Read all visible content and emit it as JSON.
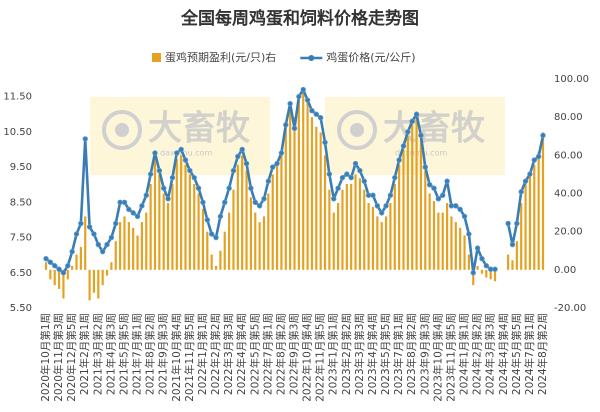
{
  "chart_data": {
    "type": "combo",
    "title": "全国每周鸡蛋和饲料价格走势图",
    "watermark_text": "大畜牧",
    "watermark_url": "daxumu.com",
    "categories": [
      "2020年10月第1周",
      null,
      null,
      "2020年11月第3周",
      null,
      null,
      "2020年12月第5周",
      null,
      null,
      "2021年2月第1周",
      null,
      null,
      "2021年3月第2周",
      null,
      null,
      "2021年4月第3周",
      null,
      null,
      "2021年5月第5周",
      null,
      null,
      "2021年7月第1周",
      null,
      null,
      "2021年8月第2周",
      null,
      null,
      "2021年9月第3周",
      null,
      null,
      "2021年10月第4周",
      null,
      null,
      "2021年11月第5周",
      null,
      null,
      "2022年1月第1周",
      null,
      null,
      "2022年2月第2周",
      null,
      null,
      "2022年3月第3周",
      null,
      null,
      "2022年4月第4周",
      null,
      null,
      "2022年5月第5周",
      null,
      null,
      "2022年7月第1周",
      null,
      null,
      "2022年8月第2周",
      null,
      null,
      "2022年9月第3周",
      null,
      null,
      "2022年10月第4周",
      null,
      null,
      "2022年11月第5周",
      null,
      null,
      "2023年1月第1周",
      null,
      null,
      "2023年2月第2周",
      null,
      null,
      "2023年3月第3周",
      null,
      null,
      "2023年4月第4周",
      null,
      null,
      "2023年5月第5周",
      null,
      null,
      "2023年7月第1周",
      null,
      null,
      "2023年8月第2周",
      null,
      null,
      "2023年9月第3周",
      null,
      null,
      "2023年10月第4周",
      null,
      null,
      "2023年11月第5周",
      null,
      null,
      "2024年1月第1周",
      null,
      null,
      "2024年2月第2周",
      null,
      null,
      "2024年3月第3周",
      null,
      null,
      "2024年4月第4周",
      null,
      null,
      "2024年5月第5周",
      null,
      null,
      "2024年7月第1周",
      null,
      null,
      "2024年8月第2周"
    ],
    "series": [
      {
        "name": "蛋鸡预期盈利(元/只)右",
        "type": "bar",
        "axis": "y2",
        "color": "#e5a11f",
        "values": [
          4,
          -5,
          -8,
          -10,
          -15,
          -5,
          2,
          8,
          12,
          28,
          -16,
          -12,
          -15,
          -8,
          -3,
          4,
          15,
          25,
          28,
          25,
          22,
          18,
          25,
          30,
          45,
          60,
          50,
          40,
          35,
          45,
          58,
          60,
          55,
          50,
          45,
          40,
          32,
          20,
          8,
          2,
          10,
          20,
          30,
          42,
          55,
          60,
          52,
          38,
          30,
          25,
          28,
          40,
          50,
          55,
          62,
          75,
          85,
          80,
          90,
          95,
          90,
          80,
          75,
          72,
          60,
          42,
          30,
          35,
          42,
          45,
          45,
          50,
          48,
          42,
          35,
          33,
          28,
          25,
          28,
          35,
          45,
          55,
          63,
          70,
          78,
          82,
          70,
          52,
          40,
          36,
          30,
          30,
          35,
          28,
          25,
          22,
          18,
          8,
          -8,
          2,
          -2,
          -4,
          -5,
          -6,
          null,
          null,
          8,
          5,
          15,
          35,
          45,
          50,
          55,
          62,
          72
        ]
      },
      {
        "name": "鸡蛋价格(元/公斤)",
        "type": "line",
        "color": "#3a7db5",
        "values": [
          6.9,
          6.8,
          6.7,
          6.6,
          6.5,
          6.7,
          7.1,
          7.6,
          7.9,
          10.3,
          7.8,
          7.6,
          7.3,
          7.1,
          7.3,
          7.5,
          7.9,
          8.5,
          8.5,
          8.3,
          8.2,
          8.1,
          8.4,
          8.7,
          9.3,
          9.9,
          9.4,
          8.9,
          8.6,
          9.2,
          9.9,
          10.0,
          9.7,
          9.4,
          9.2,
          8.9,
          8.5,
          8.0,
          7.6,
          7.5,
          8.1,
          8.5,
          8.9,
          9.4,
          9.8,
          10.0,
          9.6,
          8.9,
          8.5,
          8.4,
          8.6,
          9.1,
          9.5,
          9.6,
          9.9,
          10.7,
          11.3,
          10.6,
          11.5,
          11.7,
          11.4,
          11.1,
          11.0,
          10.9,
          10.2,
          9.3,
          8.6,
          8.9,
          9.2,
          9.3,
          9.2,
          9.6,
          9.4,
          9.1,
          8.7,
          8.7,
          8.4,
          8.2,
          8.4,
          8.7,
          9.2,
          9.7,
          10.1,
          10.5,
          10.8,
          11.0,
          10.4,
          9.5,
          9.0,
          8.9,
          8.6,
          8.7,
          9.1,
          8.4,
          8.4,
          8.3,
          8.1,
          7.6,
          6.5,
          7.2,
          6.9,
          6.7,
          6.6,
          6.6,
          null,
          null,
          7.9,
          7.3,
          7.9,
          8.8,
          9.1,
          9.3,
          9.7,
          9.8,
          10.4
        ]
      }
    ],
    "ylim": [
      5.5,
      12.0
    ],
    "yticks": [
      {
        "value": 5.5,
        "label": "5.50"
      },
      {
        "value": 6.5,
        "label": "6.50"
      },
      {
        "value": 7.5,
        "label": "7.50"
      },
      {
        "value": 8.5,
        "label": "8.50"
      },
      {
        "value": 9.5,
        "label": "9.50"
      },
      {
        "value": 10.5,
        "label": "10.50"
      },
      {
        "value": 11.5,
        "label": "11.50"
      }
    ],
    "y2lim": [
      -20,
      100
    ],
    "y2ticks": [
      {
        "value": -20,
        "label": "-20.00"
      },
      {
        "value": 0,
        "label": "0.00"
      },
      {
        "value": 20,
        "label": "20.00"
      },
      {
        "value": 40,
        "label": "40.00"
      },
      {
        "value": 60,
        "label": "60.00"
      },
      {
        "value": 80,
        "label": "80.00"
      },
      {
        "value": 100,
        "label": "100.00"
      }
    ],
    "grid": false
  }
}
